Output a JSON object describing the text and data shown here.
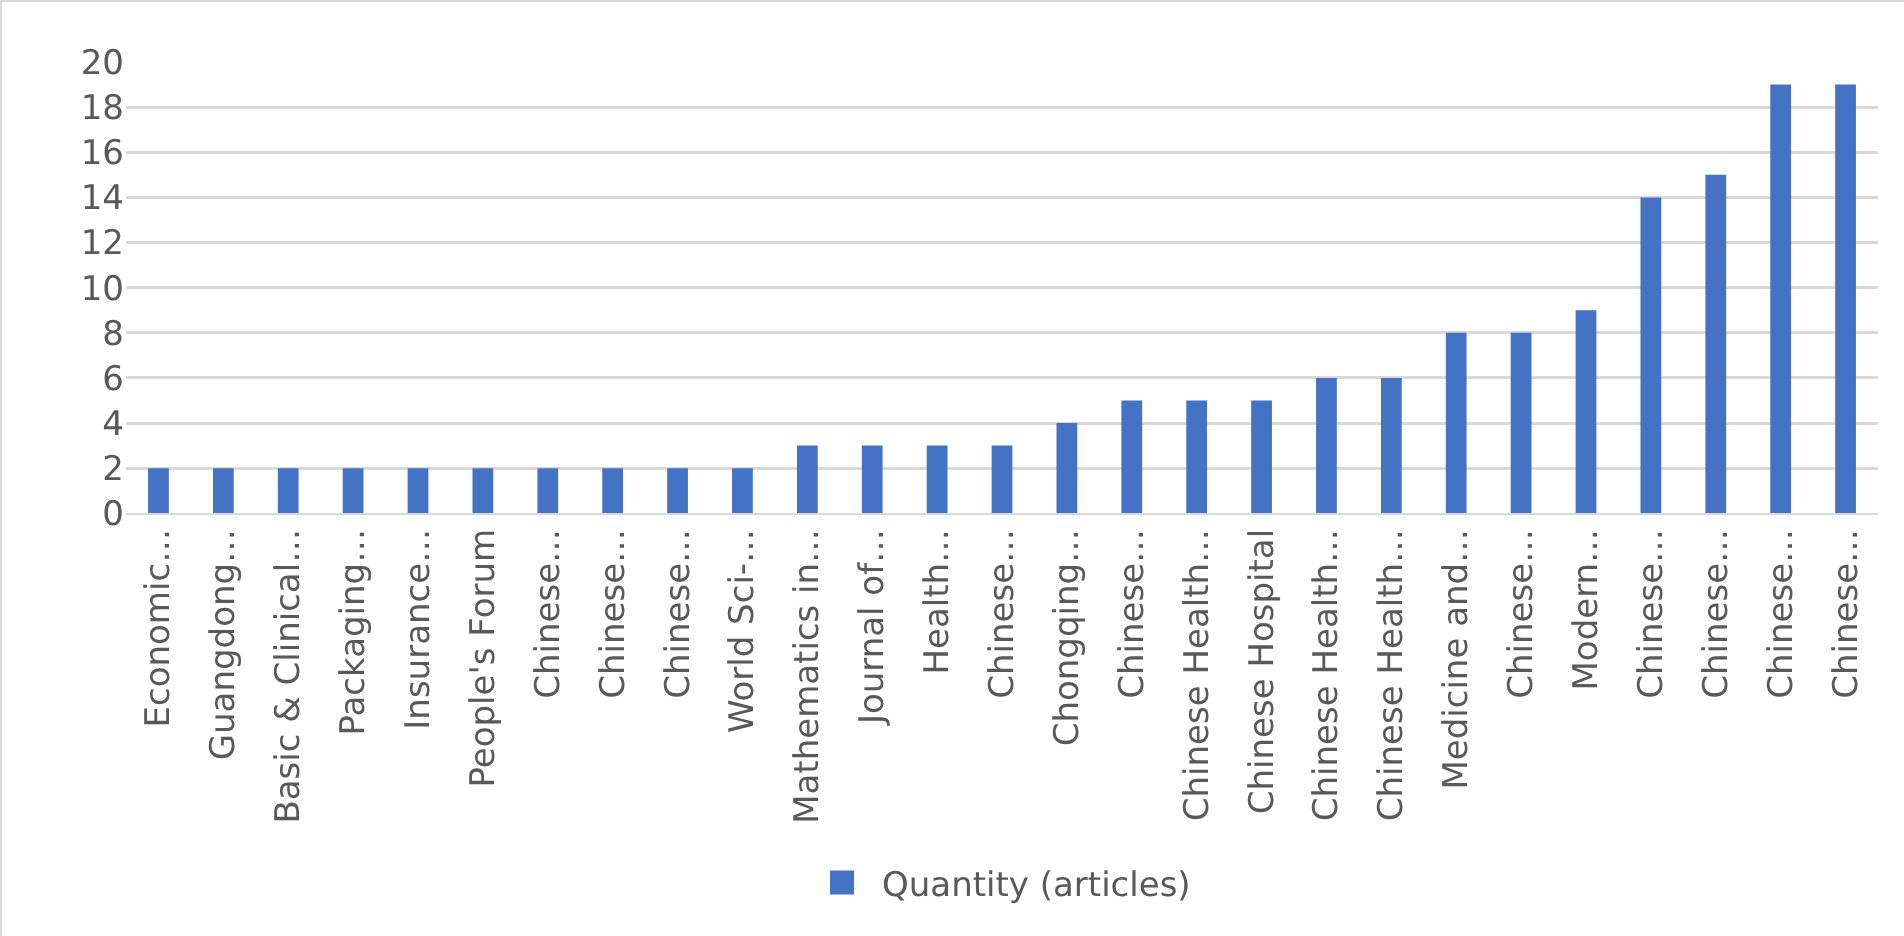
{
  "chart_data": {
    "type": "bar",
    "categories": [
      "Economic…",
      "Guangdong…",
      "Basic & Clinical…",
      "Packaging…",
      "Insurance…",
      "People's Forum",
      "Chinese…",
      "Chinese…",
      "Chinese…",
      "World Sci-…",
      "Mathematics in…",
      "Journal of…",
      "Health…",
      "Chinese…",
      "Chongqing…",
      "Chinese…",
      "Chinese Health…",
      "Chinese Hospital",
      "Chinese Health…",
      "Chinese Health…",
      "Medicine and…",
      "Chinese…",
      "Modern…",
      "Chinese…",
      "Chinese…",
      "Chinese…",
      "Chinese…"
    ],
    "series": [
      {
        "name": "Quantity (articles)",
        "color": "#4472c4",
        "values": [
          2,
          2,
          2,
          2,
          2,
          2,
          2,
          2,
          2,
          2,
          3,
          3,
          3,
          3,
          4,
          5,
          5,
          5,
          6,
          6,
          8,
          8,
          9,
          14,
          15,
          19,
          19
        ]
      }
    ],
    "ylim": [
      0,
      20
    ],
    "yticks": [
      0,
      2,
      4,
      6,
      8,
      10,
      12,
      14,
      16,
      18,
      20
    ],
    "grid": "y",
    "legend": "bottom"
  }
}
